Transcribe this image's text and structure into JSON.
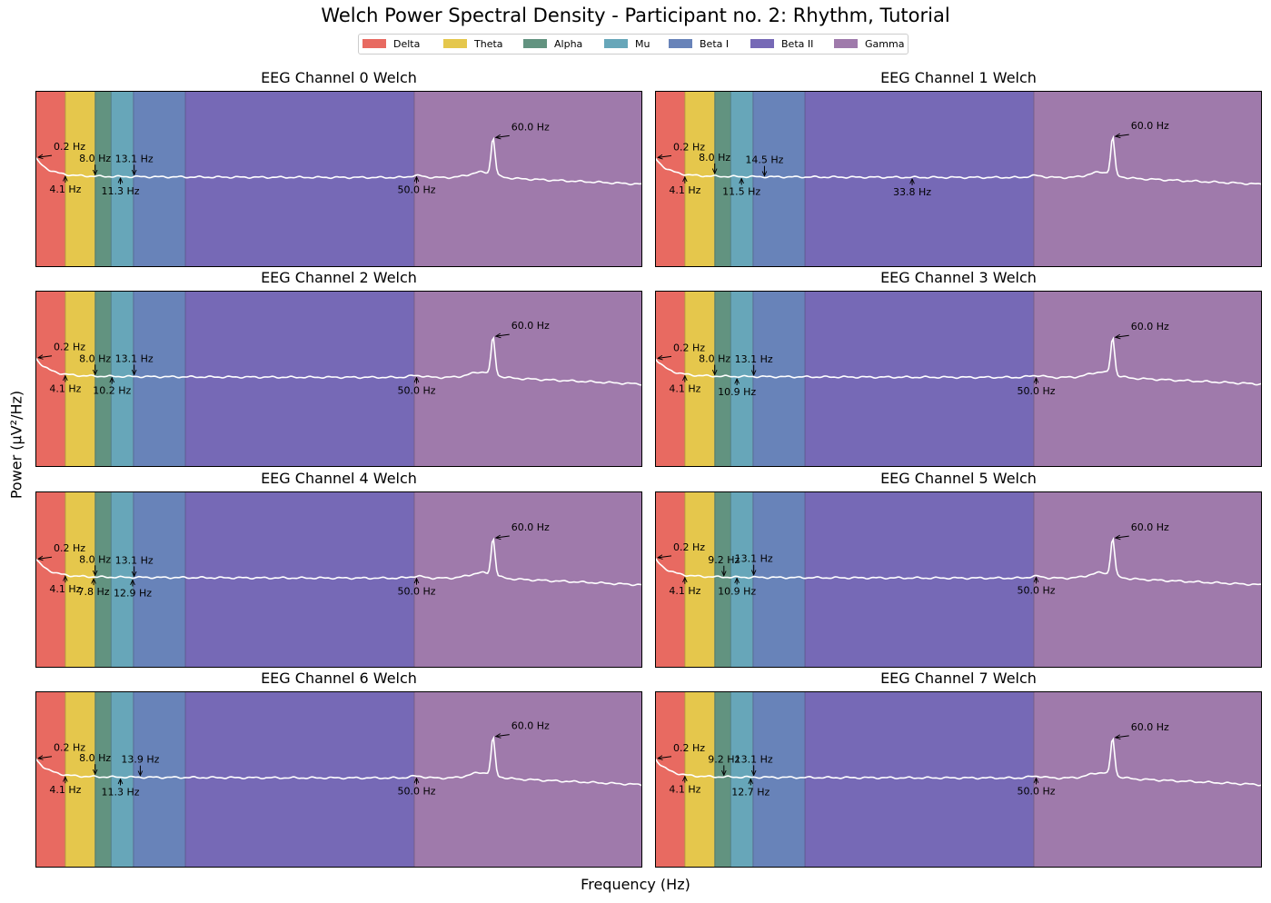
{
  "title": "Welch Power Spectral Density - Participant no. 2: Rhythm, Tutorial",
  "xlabel": "Frequency (Hz)",
  "ylabel": "Power (µV²/Hz)",
  "colors": {
    "line": "#ffffff",
    "frame": "#000000"
  },
  "bands": [
    {
      "name": "Delta",
      "range": [
        0.2,
        4.1
      ],
      "color": "#e86a61"
    },
    {
      "name": "Theta",
      "range": [
        4.1,
        8.0
      ],
      "color": "#e5c74c"
    },
    {
      "name": "Alpha",
      "range": [
        8.0,
        10.1
      ],
      "color": "#629380"
    },
    {
      "name": "Mu",
      "range": [
        10.1,
        13.0
      ],
      "color": "#67a6b9"
    },
    {
      "name": "Beta I",
      "range": [
        13.0,
        19.8
      ],
      "color": "#6883b9"
    },
    {
      "name": "Beta II",
      "range": [
        19.8,
        49.7
      ],
      "color": "#7669b6"
    },
    {
      "name": "Gamma",
      "range": [
        49.7,
        79.5
      ],
      "color": "#9f7aab"
    }
  ],
  "chart_data": [
    {
      "type": "line",
      "title": "EEG Channel 0 Welch",
      "xlim": [
        0.2,
        79.5
      ],
      "peaks": [
        {
          "label": "0.2 Hz",
          "x": 0.2,
          "dir": "right"
        },
        {
          "label": "4.1 Hz",
          "x": 4.1,
          "dir": "below"
        },
        {
          "label": "8.0 Hz",
          "x": 8.0,
          "dir": "above"
        },
        {
          "label": "11.3 Hz",
          "x": 11.3,
          "dir": "below"
        },
        {
          "label": "13.1 Hz",
          "x": 13.1,
          "dir": "above"
        },
        {
          "label": "50.0 Hz",
          "x": 50.0,
          "dir": "below"
        },
        {
          "label": "60.0 Hz",
          "x": 60.0,
          "dir": "right"
        }
      ]
    },
    {
      "type": "line",
      "title": "EEG Channel 1 Welch",
      "xlim": [
        0.2,
        79.5
      ],
      "peaks": [
        {
          "label": "0.2 Hz",
          "x": 0.2,
          "dir": "right"
        },
        {
          "label": "4.1 Hz",
          "x": 4.1,
          "dir": "below"
        },
        {
          "label": "8.0 Hz",
          "x": 8.0,
          "dir": "above"
        },
        {
          "label": "11.5 Hz",
          "x": 11.5,
          "dir": "below"
        },
        {
          "label": "14.5 Hz",
          "x": 14.5,
          "dir": "above"
        },
        {
          "label": "33.8 Hz",
          "x": 33.8,
          "dir": "below"
        },
        {
          "label": "60.0 Hz",
          "x": 60.0,
          "dir": "right"
        }
      ]
    },
    {
      "type": "line",
      "title": "EEG Channel 2 Welch",
      "xlim": [
        0.2,
        79.5
      ],
      "peaks": [
        {
          "label": "0.2 Hz",
          "x": 0.2,
          "dir": "right"
        },
        {
          "label": "4.1 Hz",
          "x": 4.1,
          "dir": "below"
        },
        {
          "label": "8.0 Hz",
          "x": 8.0,
          "dir": "above"
        },
        {
          "label": "10.2 Hz",
          "x": 10.2,
          "dir": "below"
        },
        {
          "label": "13.1 Hz",
          "x": 13.1,
          "dir": "above"
        },
        {
          "label": "50.0 Hz",
          "x": 50.0,
          "dir": "below"
        },
        {
          "label": "60.0 Hz",
          "x": 60.0,
          "dir": "right"
        }
      ]
    },
    {
      "type": "line",
      "title": "EEG Channel 3 Welch",
      "xlim": [
        0.2,
        79.5
      ],
      "peaks": [
        {
          "label": "0.2 Hz",
          "x": 0.2,
          "dir": "right"
        },
        {
          "label": "4.1 Hz",
          "x": 4.1,
          "dir": "below"
        },
        {
          "label": "8.0 Hz",
          "x": 8.0,
          "dir": "above"
        },
        {
          "label": "10.9 Hz",
          "x": 10.9,
          "dir": "below"
        },
        {
          "label": "13.1 Hz",
          "x": 13.1,
          "dir": "above"
        },
        {
          "label": "50.0 Hz",
          "x": 50.0,
          "dir": "below"
        },
        {
          "label": "60.0 Hz",
          "x": 60.0,
          "dir": "right"
        }
      ]
    },
    {
      "type": "line",
      "title": "EEG Channel 4 Welch",
      "xlim": [
        0.2,
        79.5
      ],
      "peaks": [
        {
          "label": "0.2 Hz",
          "x": 0.2,
          "dir": "right"
        },
        {
          "label": "4.1 Hz",
          "x": 4.1,
          "dir": "below"
        },
        {
          "label": "8.0 Hz",
          "x": 8.0,
          "dir": "above"
        },
        {
          "label": "7.8 Hz",
          "x": 7.8,
          "dir": "below"
        },
        {
          "label": "12.9 Hz",
          "x": 12.9,
          "dir": "below"
        },
        {
          "label": "13.1 Hz",
          "x": 13.1,
          "dir": "above"
        },
        {
          "label": "50.0 Hz",
          "x": 50.0,
          "dir": "below"
        },
        {
          "label": "60.0 Hz",
          "x": 60.0,
          "dir": "right"
        }
      ]
    },
    {
      "type": "line",
      "title": "EEG Channel 5 Welch",
      "xlim": [
        0.2,
        79.5
      ],
      "peaks": [
        {
          "label": "0.2 Hz",
          "x": 0.2,
          "dir": "right"
        },
        {
          "label": "4.1 Hz",
          "x": 4.1,
          "dir": "below"
        },
        {
          "label": "9.2 Hz",
          "x": 9.2,
          "dir": "above"
        },
        {
          "label": "10.9 Hz",
          "x": 10.9,
          "dir": "below"
        },
        {
          "label": "13.1 Hz",
          "x": 13.1,
          "dir": "above"
        },
        {
          "label": "50.0 Hz",
          "x": 50.0,
          "dir": "below"
        },
        {
          "label": "60.0 Hz",
          "x": 60.0,
          "dir": "right"
        }
      ]
    },
    {
      "type": "line",
      "title": "EEG Channel 6 Welch",
      "xlim": [
        0.2,
        79.5
      ],
      "peaks": [
        {
          "label": "0.2 Hz",
          "x": 0.2,
          "dir": "right"
        },
        {
          "label": "4.1 Hz",
          "x": 4.1,
          "dir": "below"
        },
        {
          "label": "8.0 Hz",
          "x": 8.0,
          "dir": "above"
        },
        {
          "label": "11.3 Hz",
          "x": 11.3,
          "dir": "below"
        },
        {
          "label": "13.9 Hz",
          "x": 13.9,
          "dir": "above"
        },
        {
          "label": "50.0 Hz",
          "x": 50.0,
          "dir": "below"
        },
        {
          "label": "60.0 Hz",
          "x": 60.0,
          "dir": "right"
        }
      ]
    },
    {
      "type": "line",
      "title": "EEG Channel 7 Welch",
      "xlim": [
        0.2,
        79.5
      ],
      "peaks": [
        {
          "label": "0.2 Hz",
          "x": 0.2,
          "dir": "right"
        },
        {
          "label": "4.1 Hz",
          "x": 4.1,
          "dir": "below"
        },
        {
          "label": "9.2 Hz",
          "x": 9.2,
          "dir": "above"
        },
        {
          "label": "12.7 Hz",
          "x": 12.7,
          "dir": "below"
        },
        {
          "label": "13.1 Hz",
          "x": 13.1,
          "dir": "above"
        },
        {
          "label": "50.0 Hz",
          "x": 50.0,
          "dir": "below"
        },
        {
          "label": "60.0 Hz",
          "x": 60.0,
          "dir": "right"
        }
      ]
    }
  ]
}
